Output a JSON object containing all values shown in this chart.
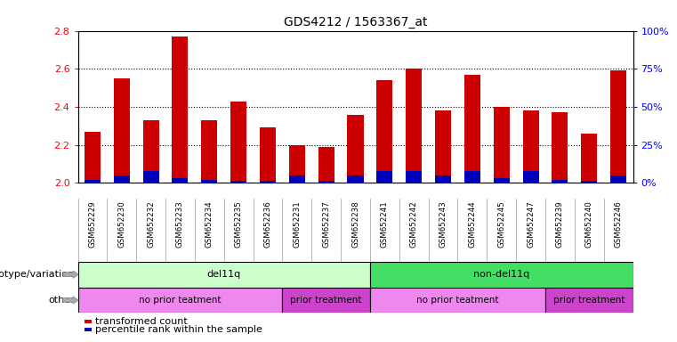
{
  "title": "GDS4212 / 1563367_at",
  "samples": [
    "GSM652229",
    "GSM652230",
    "GSM652232",
    "GSM652233",
    "GSM652234",
    "GSM652235",
    "GSM652236",
    "GSM652231",
    "GSM652237",
    "GSM652238",
    "GSM652241",
    "GSM652242",
    "GSM652243",
    "GSM652244",
    "GSM652245",
    "GSM652247",
    "GSM652239",
    "GSM652240",
    "GSM652246"
  ],
  "red_values": [
    2.27,
    2.55,
    2.33,
    2.77,
    2.33,
    2.43,
    2.29,
    2.2,
    2.19,
    2.36,
    2.54,
    2.6,
    2.38,
    2.57,
    2.4,
    2.38,
    2.37,
    2.26,
    2.59
  ],
  "blue_pct": [
    2.0,
    5.0,
    8.0,
    3.0,
    2.0,
    1.5,
    1.5,
    5.0,
    1.5,
    5.0,
    8.0,
    8.0,
    5.0,
    8.0,
    3.0,
    8.0,
    2.0,
    1.5,
    5.0
  ],
  "ylim_left": [
    2.0,
    2.8
  ],
  "ylim_right": [
    0,
    100
  ],
  "yticks_left": [
    2.0,
    2.2,
    2.4,
    2.6,
    2.8
  ],
  "yticks_right": [
    0,
    25,
    50,
    75,
    100
  ],
  "ytick_labels_right": [
    "0%",
    "25%",
    "50%",
    "75%",
    "100%"
  ],
  "bar_color_red": "#cc0000",
  "bar_color_blue": "#0000bb",
  "bar_width": 0.55,
  "genotype_groups": [
    {
      "label": "del11q",
      "start": 0,
      "end": 10,
      "color": "#ccffcc"
    },
    {
      "label": "non-del11q",
      "start": 10,
      "end": 19,
      "color": "#44dd66"
    }
  ],
  "treatment_groups": [
    {
      "label": "no prior teatment",
      "start": 0,
      "end": 7,
      "color": "#ee88ee"
    },
    {
      "label": "prior treatment",
      "start": 7,
      "end": 10,
      "color": "#cc44cc"
    },
    {
      "label": "no prior teatment",
      "start": 10,
      "end": 16,
      "color": "#ee88ee"
    },
    {
      "label": "prior treatment",
      "start": 16,
      "end": 19,
      "color": "#cc44cc"
    }
  ],
  "genotype_label": "genotype/variation",
  "other_label": "other",
  "legend_red": "transformed count",
  "legend_blue": "percentile rank within the sample",
  "bg_color": "#ffffff",
  "grid_dotted_at": [
    2.2,
    2.4,
    2.6
  ]
}
